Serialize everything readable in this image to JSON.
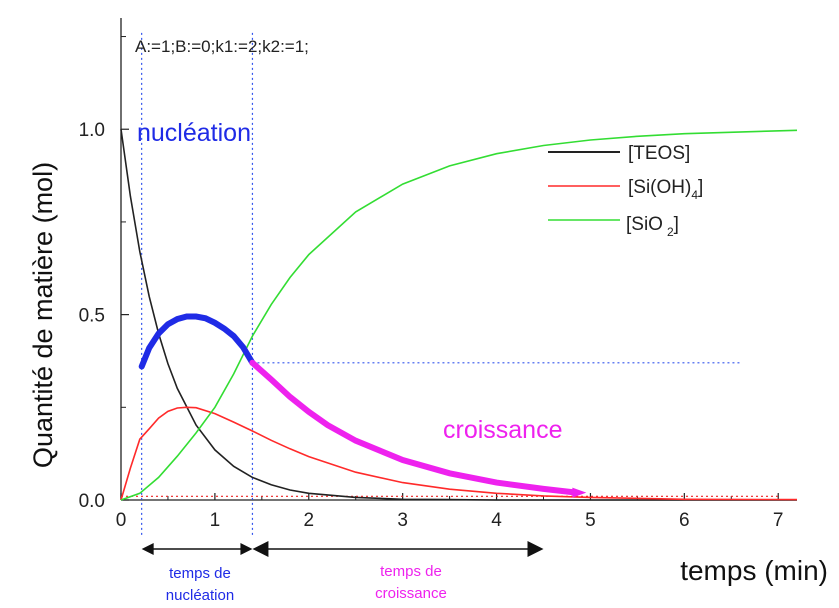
{
  "chart_data": {
    "type": "line",
    "equation_text": "A:=1;B:=0;k1:=2;k2:=1;",
    "xlabel": "temps (min)",
    "ylabel": "Quantité de matière (mol)",
    "xlim": [
      0,
      7.2
    ],
    "ylim": [
      0,
      1.3
    ],
    "x_ticks": [
      "0",
      "1",
      "2",
      "3",
      "4",
      "5",
      "6",
      "7"
    ],
    "y_ticks": [
      "0.0",
      "0.5",
      "1.0"
    ],
    "series": [
      {
        "name": "[TEOS]",
        "color": "#222222",
        "x": [
          0,
          0.1,
          0.2,
          0.3,
          0.4,
          0.5,
          0.6,
          0.8,
          1.0,
          1.2,
          1.4,
          1.6,
          1.8,
          2.0,
          2.5,
          3.0,
          3.5,
          4.0,
          5.0,
          6.0,
          7.2
        ],
        "y": [
          1.0,
          0.819,
          0.67,
          0.549,
          0.449,
          0.368,
          0.301,
          0.202,
          0.135,
          0.091,
          0.061,
          0.041,
          0.027,
          0.018,
          0.007,
          0.002,
          0.001,
          0.0,
          0.0,
          0.0,
          0.0
        ]
      },
      {
        "name": "[Si(OH)4]",
        "color": "#ff2a2a",
        "x": [
          0,
          0.1,
          0.2,
          0.3,
          0.4,
          0.5,
          0.6,
          0.7,
          0.8,
          1.0,
          1.2,
          1.4,
          1.6,
          1.8,
          2.0,
          2.5,
          3.0,
          3.5,
          4.0,
          4.5,
          5.0,
          6.0,
          7.2
        ],
        "y": [
          0.0,
          0.086,
          0.164,
          0.192,
          0.221,
          0.239,
          0.248,
          0.25,
          0.249,
          0.233,
          0.21,
          0.186,
          0.161,
          0.138,
          0.117,
          0.075,
          0.047,
          0.029,
          0.018,
          0.011,
          0.007,
          0.002,
          0.001
        ]
      },
      {
        "name": "[SiO2]",
        "color": "#33dd33",
        "x": [
          0,
          0.2,
          0.4,
          0.6,
          0.8,
          1.0,
          1.2,
          1.4,
          1.6,
          1.8,
          2.0,
          2.5,
          3.0,
          3.5,
          4.0,
          4.5,
          5.0,
          5.5,
          6.0,
          7.2
        ],
        "y": [
          0.0,
          0.018,
          0.061,
          0.118,
          0.181,
          0.25,
          0.34,
          0.442,
          0.527,
          0.6,
          0.662,
          0.777,
          0.852,
          0.901,
          0.934,
          0.956,
          0.971,
          0.981,
          0.988,
          0.997
        ]
      }
    ],
    "highlight_segments": [
      {
        "label": "nucléation",
        "color": "#1f2be6",
        "x": [
          0.22,
          0.3,
          0.4,
          0.5,
          0.6,
          0.7,
          0.8,
          0.9,
          1.0,
          1.1,
          1.2,
          1.3,
          1.4
        ],
        "y": [
          0.36,
          0.41,
          0.449,
          0.474,
          0.488,
          0.495,
          0.495,
          0.49,
          0.478,
          0.462,
          0.442,
          0.412,
          0.37
        ]
      },
      {
        "label": "croissance",
        "color": "#ee22ee",
        "x": [
          1.4,
          1.6,
          1.8,
          2.0,
          2.2,
          2.5,
          3.0,
          3.5,
          4.0,
          4.5,
          4.85
        ],
        "y": [
          0.37,
          0.325,
          0.278,
          0.238,
          0.202,
          0.16,
          0.108,
          0.072,
          0.047,
          0.03,
          0.02
        ]
      }
    ],
    "reference_lines": {
      "vertical_x": [
        0.22,
        1.4
      ],
      "horizontal_y": [
        0.37,
        0.01
      ],
      "color": "#3355ee"
    },
    "duration_arrows": [
      {
        "x": [
          0.22,
          1.4
        ],
        "label": "temps de nucléation",
        "label_lines": [
          "temps de",
          "nucléation"
        ],
        "color": "#1f2be6"
      },
      {
        "x": [
          1.4,
          4.5
        ],
        "label": "temps de croissance",
        "label_lines": [
          "temps de",
          "croissance"
        ],
        "color": "#ee22ee"
      }
    ],
    "legend_position": "top-right",
    "grid": false
  }
}
